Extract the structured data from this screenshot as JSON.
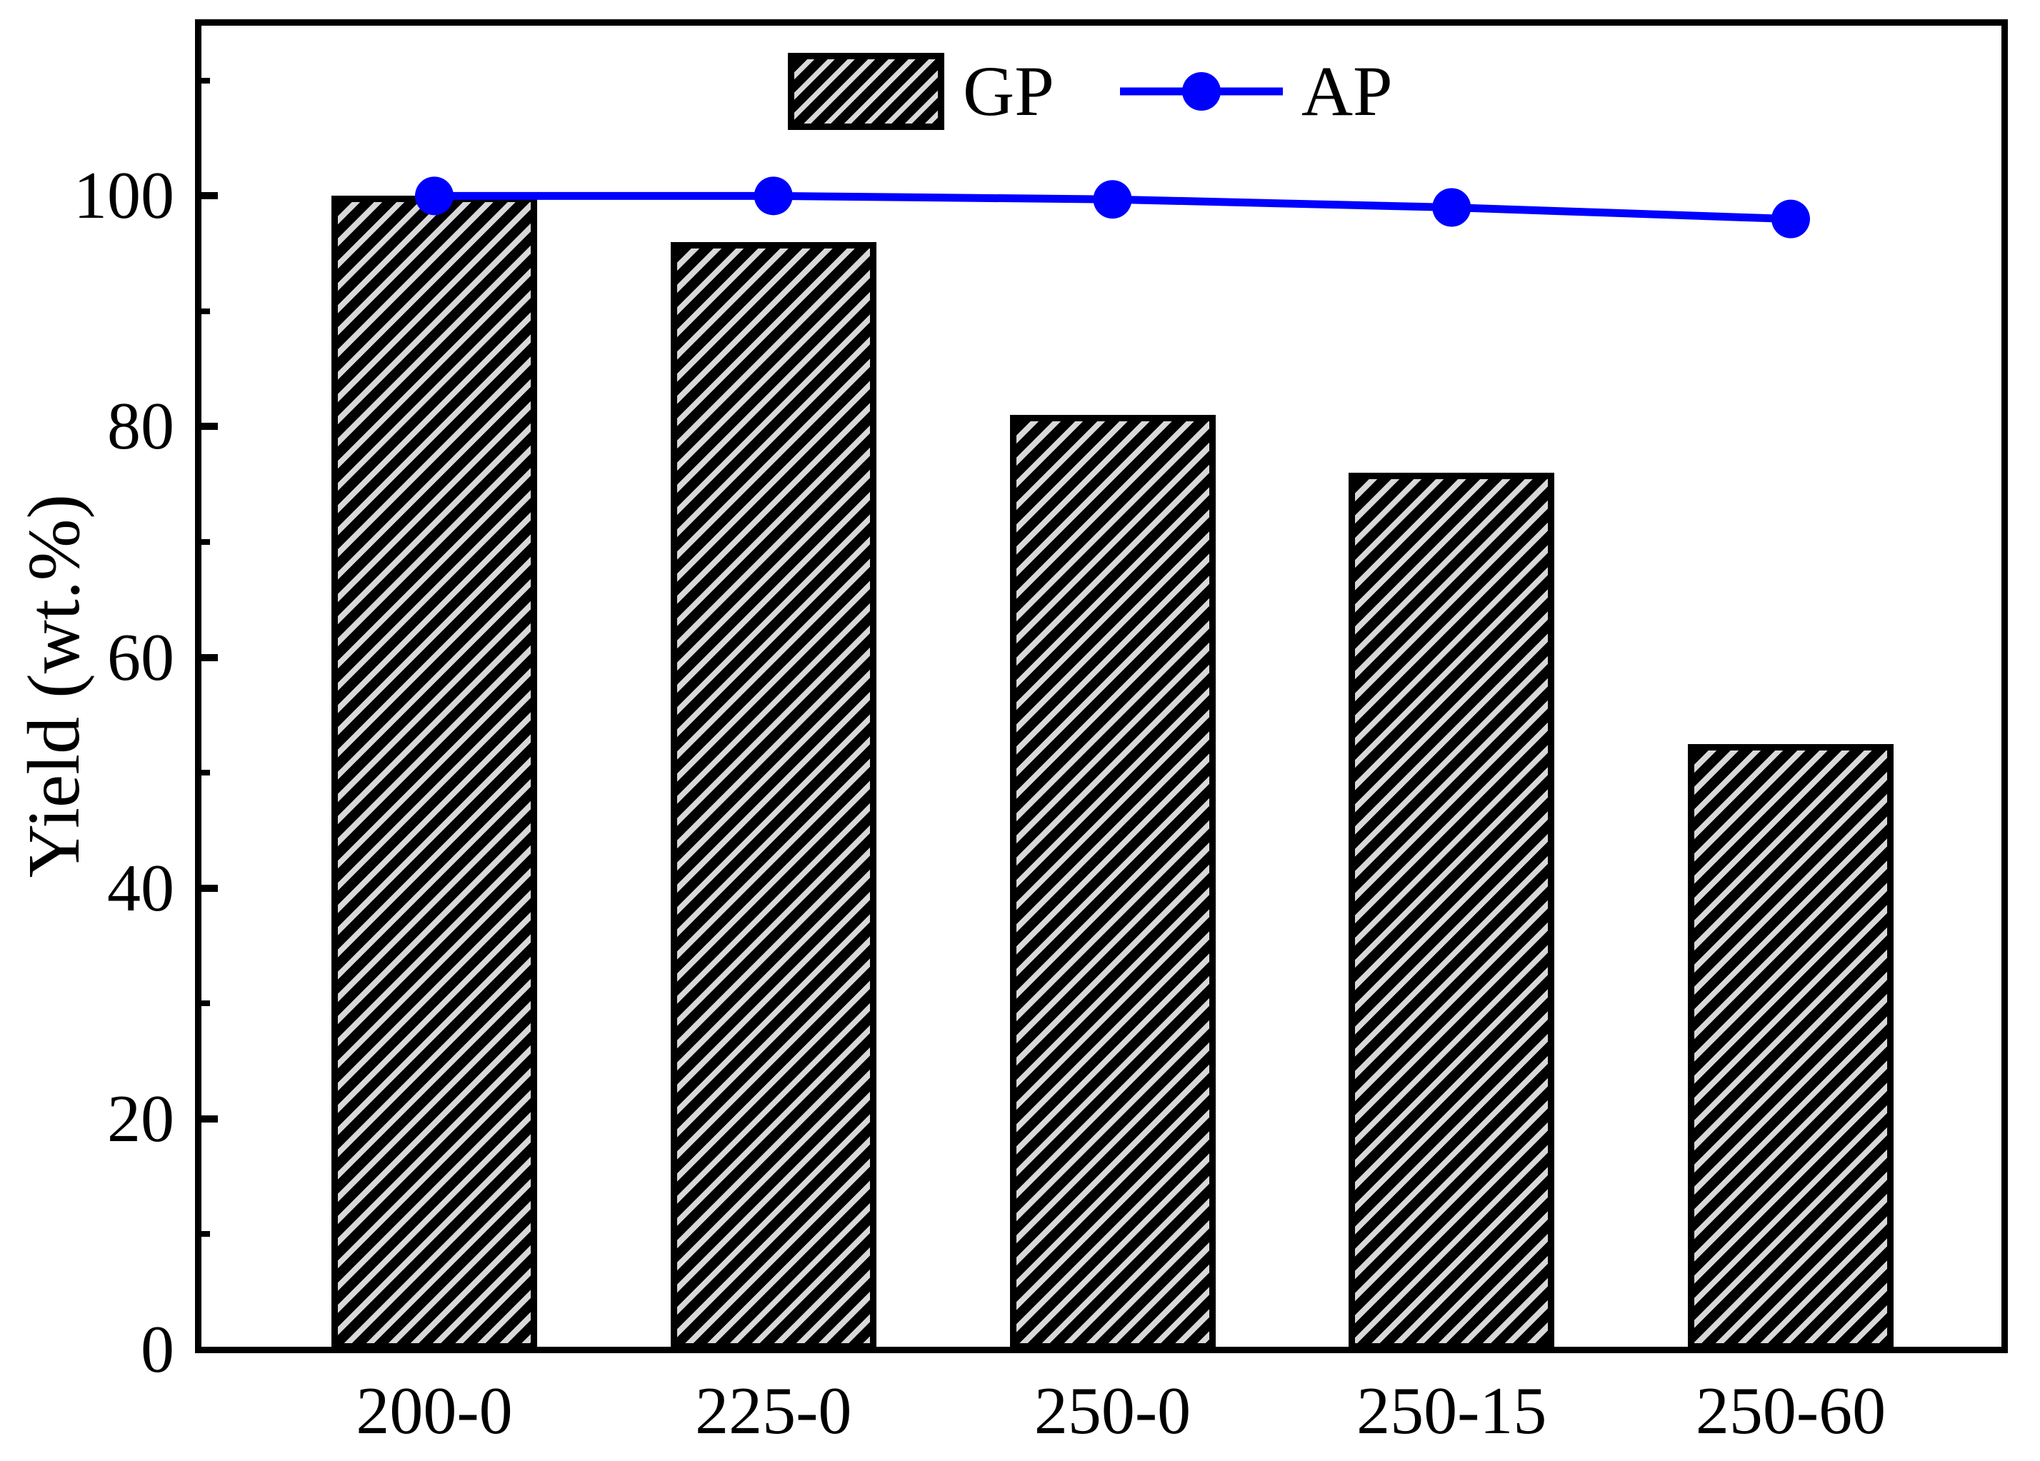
{
  "chart_data": {
    "type": "bar+line",
    "title": "",
    "xlabel": "",
    "ylabel": "Yield (wt.%)",
    "categories": [
      "200-0",
      "225-0",
      "250-0",
      "250-15",
      "250-60"
    ],
    "series": [
      {
        "name": "GP",
        "type": "bar",
        "values": [
          100,
          96,
          81,
          76,
          52.5
        ]
      },
      {
        "name": "AP",
        "type": "line",
        "values": [
          100,
          100,
          99.7,
          99,
          98
        ]
      }
    ],
    "ylim": [
      0,
      115
    ],
    "yticks": [
      0,
      20,
      40,
      60,
      80,
      100
    ],
    "yticks_minor": [
      10,
      30,
      50,
      70,
      90,
      110
    ],
    "grid": false,
    "legend": {
      "position": "top-center",
      "entries": [
        "GP",
        "AP"
      ]
    },
    "colors": {
      "axis": "#000000",
      "bar_hatch_fg": "#000000",
      "bar_hatch_bg": "#d8d8d8",
      "line": "#0000FF",
      "marker": "#0000FF"
    }
  }
}
